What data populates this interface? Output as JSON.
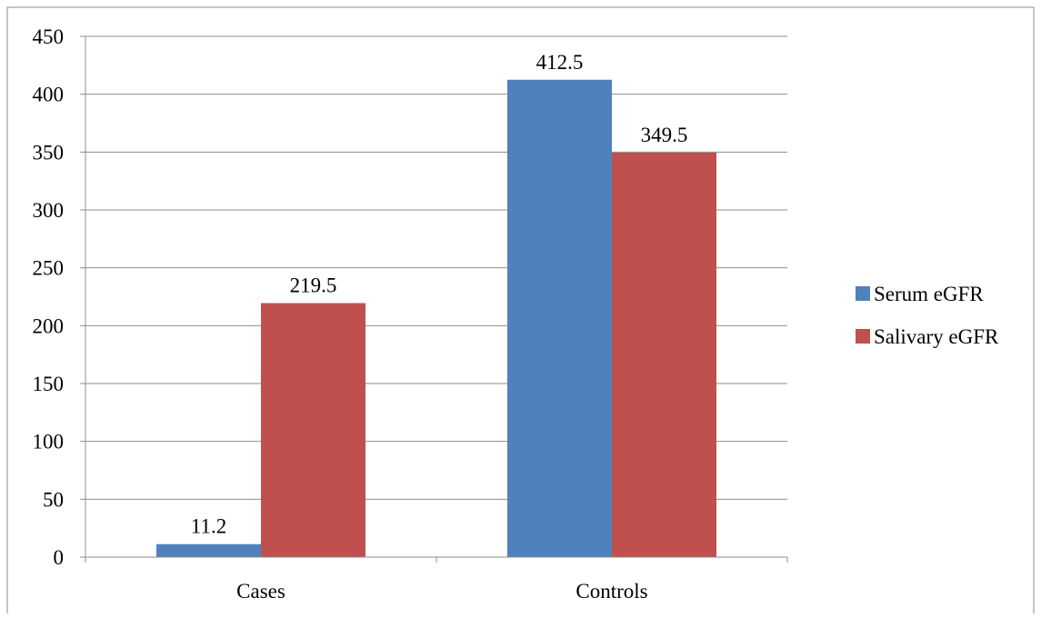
{
  "chart_data": {
    "type": "bar",
    "categories": [
      "Cases",
      "Controls"
    ],
    "series": [
      {
        "name": "Serum eGFR",
        "values": [
          11.2,
          412.5
        ],
        "color": "#4F81BD"
      },
      {
        "name": "Salivary eGFR",
        "values": [
          219.5,
          349.5
        ],
        "color": "#C0504D"
      }
    ],
    "data_labels": [
      [
        "11.2",
        "412.5"
      ],
      [
        "219.5",
        "349.5"
      ]
    ],
    "y_ticks": [
      "0",
      "50",
      "100",
      "150",
      "200",
      "250",
      "300",
      "350",
      "400",
      "450"
    ],
    "ylim": [
      0,
      450
    ],
    "grid": true,
    "legend_position": "right",
    "title": "",
    "xlabel": "",
    "ylabel": ""
  }
}
